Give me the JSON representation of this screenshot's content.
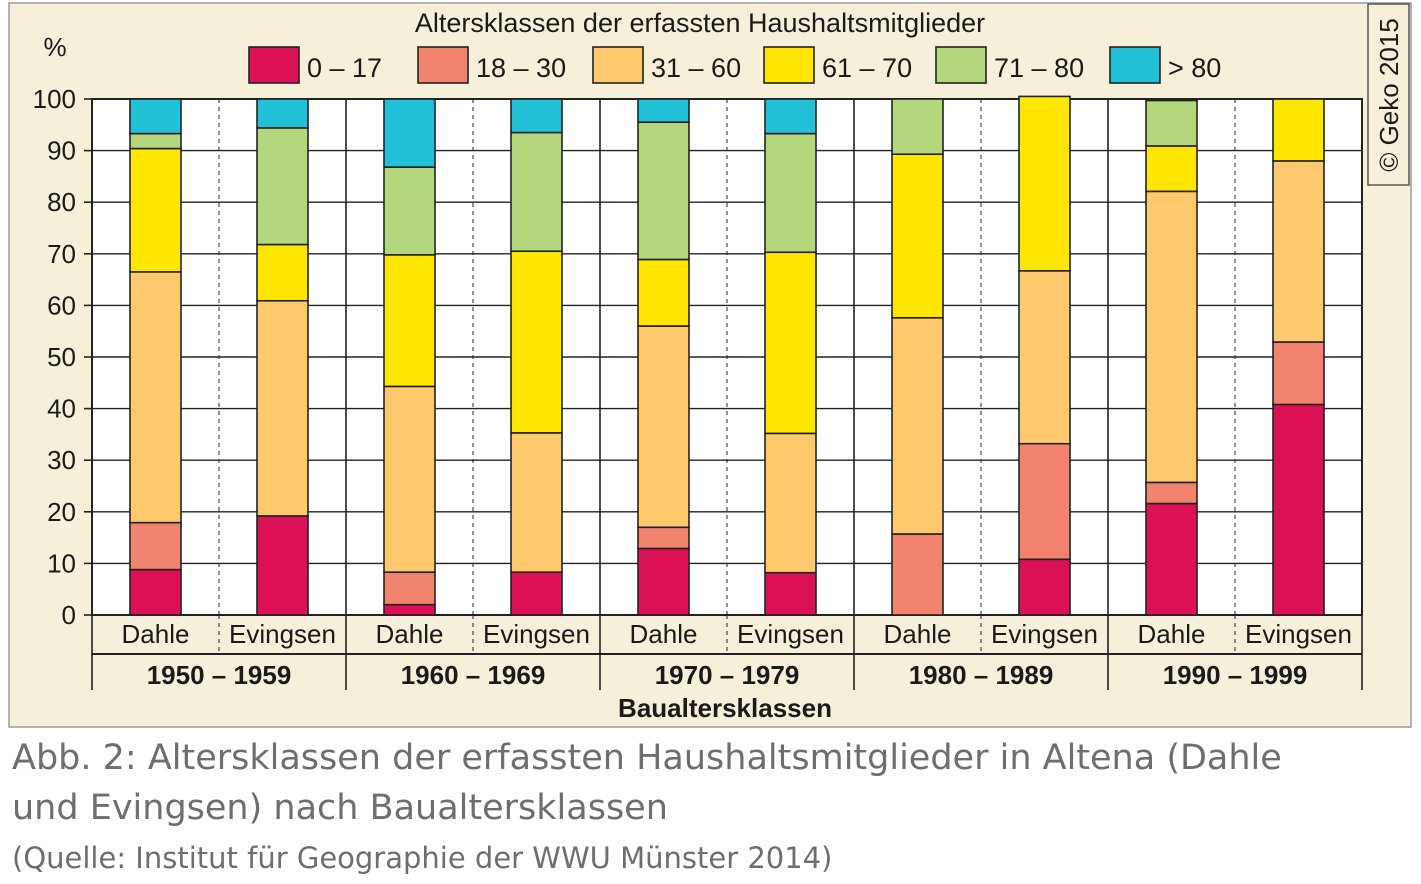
{
  "chart_data": {
    "type": "bar",
    "stacked": true,
    "title": "Altersklassen der erfassten Haushaltsmitglieder",
    "ylabel": "%",
    "xlabel": "Baualtersklassen",
    "ylim": [
      0,
      100
    ],
    "yticks": [
      0,
      10,
      20,
      30,
      40,
      50,
      60,
      70,
      80,
      90,
      100
    ],
    "groups": [
      "1950 – 1959",
      "1960 – 1969",
      "1970 – 1979",
      "1980 – 1989",
      "1990 – 1999"
    ],
    "categories": [
      "Dahle",
      "Evingsen",
      "Dahle",
      "Evingsen",
      "Dahle",
      "Evingsen",
      "Dahle",
      "Evingsen",
      "Dahle",
      "Evingsen"
    ],
    "series": [
      {
        "name": "0 – 17",
        "color": "#dc1155",
        "values": [
          8.8,
          19.2,
          2.0,
          8.3,
          12.9,
          8.2,
          0,
          10.8,
          21.6,
          40.8
        ]
      },
      {
        "name": "18 – 30",
        "color": "#f2836f",
        "values": [
          9.1,
          0,
          6.3,
          0,
          4.1,
          0,
          15.7,
          22.4,
          4.1,
          12.1
        ]
      },
      {
        "name": "31 – 60",
        "color": "#fec96d",
        "values": [
          48.6,
          41.7,
          36.0,
          27.0,
          39.0,
          27.0,
          41.9,
          33.5,
          56.4,
          35.1
        ]
      },
      {
        "name": "61 – 70",
        "color": "#fee600",
        "values": [
          23.9,
          10.9,
          25.5,
          35.2,
          12.9,
          35.1,
          31.7,
          33.8,
          8.8,
          12.0
        ]
      },
      {
        "name": "71 – 80",
        "color": "#b4d67c",
        "values": [
          2.9,
          22.6,
          17.0,
          23.0,
          26.6,
          23.0,
          10.7,
          0,
          8.8,
          0
        ]
      },
      {
        "name": "> 80",
        "color": "#22c1d8",
        "values": [
          6.7,
          5.6,
          13.2,
          6.5,
          4.5,
          6.7,
          0,
          0,
          0,
          0
        ]
      }
    ],
    "legend_position": "top",
    "grid": true
  },
  "copyright": "© Geko 2015",
  "caption": {
    "line1": "Abb. 2: Altersklassen der erfassten Haushaltsmitglieder in Altena (Dahle",
    "line2": "und Evingsen) nach Baualtersklassen",
    "line3": "(Quelle: Institut für Geographie der WWU Münster 2014)"
  }
}
